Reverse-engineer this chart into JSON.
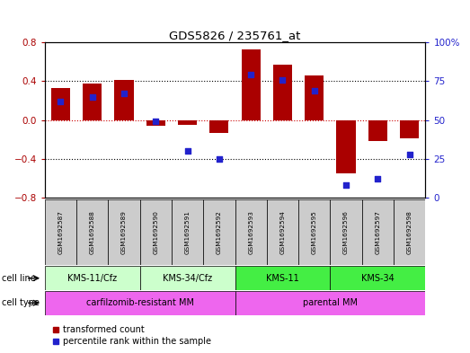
{
  "title": "GDS5826 / 235761_at",
  "samples": [
    "GSM1692587",
    "GSM1692588",
    "GSM1692589",
    "GSM1692590",
    "GSM1692591",
    "GSM1692592",
    "GSM1692593",
    "GSM1692594",
    "GSM1692595",
    "GSM1692596",
    "GSM1692597",
    "GSM1692598"
  ],
  "bar_values": [
    0.33,
    0.38,
    0.41,
    -0.06,
    -0.05,
    -0.13,
    0.73,
    0.57,
    0.46,
    -0.55,
    -0.22,
    -0.19
  ],
  "percentile_values": [
    62,
    65,
    67,
    49,
    30,
    25,
    79,
    76,
    69,
    8,
    12,
    28
  ],
  "ylim_left": [
    -0.8,
    0.8
  ],
  "ylim_right": [
    0,
    100
  ],
  "yticks_left": [
    -0.8,
    -0.4,
    0.0,
    0.4,
    0.8
  ],
  "yticks_right": [
    0,
    25,
    50,
    75,
    100
  ],
  "bar_color": "#aa0000",
  "dot_color": "#2222cc",
  "zero_line_color": "#cc0000",
  "hline_color": "#000000",
  "bg_color": "#ffffff",
  "sample_box_color": "#cccccc",
  "cell_line_groups": [
    {
      "label": "KMS-11/Cfz",
      "start": 0,
      "end": 3,
      "color": "#ccffcc"
    },
    {
      "label": "KMS-34/Cfz",
      "start": 3,
      "end": 6,
      "color": "#ccffcc"
    },
    {
      "label": "KMS-11",
      "start": 6,
      "end": 9,
      "color": "#44ee44"
    },
    {
      "label": "KMS-34",
      "start": 9,
      "end": 12,
      "color": "#44ee44"
    }
  ],
  "cell_type_colors": [
    "#ee66ee",
    "#ee66ee"
  ],
  "cell_type_groups": [
    {
      "label": "carfilzomib-resistant MM",
      "start": 0,
      "end": 6
    },
    {
      "label": "parental MM",
      "start": 6,
      "end": 12
    }
  ],
  "legend_items": [
    {
      "label": "transformed count",
      "color": "#aa0000"
    },
    {
      "label": "percentile rank within the sample",
      "color": "#2222cc"
    }
  ]
}
